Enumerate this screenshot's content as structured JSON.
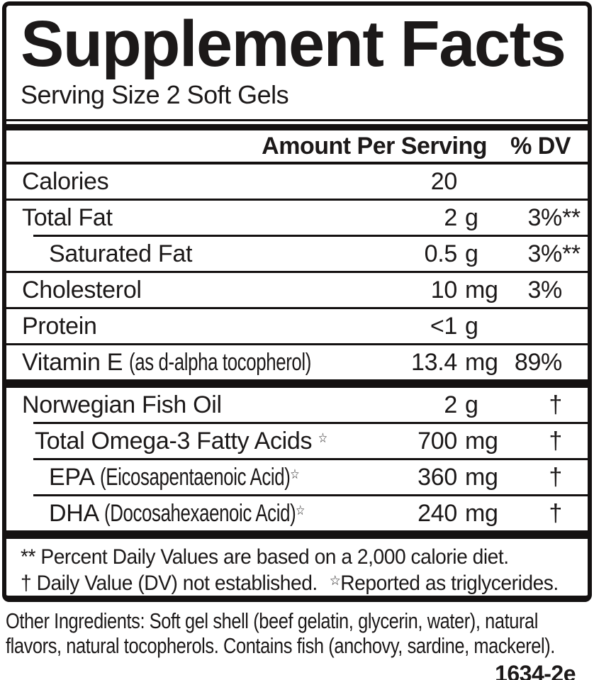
{
  "title": "Supplement Facts",
  "serving_size": "Serving Size 2 Soft Gels",
  "header": {
    "amount_label": "Amount Per Serving",
    "dv_label": "% DV"
  },
  "rows": [
    {
      "id": "calories",
      "label": "Calories",
      "note": "",
      "sup": "",
      "indent": 0,
      "amount": "20",
      "unit": "",
      "dv": "",
      "dv_suffix": "",
      "sep_below": "full"
    },
    {
      "id": "total-fat",
      "label": "Total Fat",
      "note": "",
      "sup": "",
      "indent": 0,
      "amount": "2",
      "unit": "g",
      "dv": "3%",
      "dv_suffix": "**",
      "sep_below": "indent"
    },
    {
      "id": "saturated-fat",
      "label": "Saturated Fat",
      "note": "",
      "sup": "",
      "indent": 2,
      "amount": "0.5",
      "unit": "g",
      "dv": "3%",
      "dv_suffix": "**",
      "sep_below": "full"
    },
    {
      "id": "cholesterol",
      "label": "Cholesterol",
      "note": "",
      "sup": "",
      "indent": 0,
      "amount": "10",
      "unit": "mg",
      "dv": "3%",
      "dv_suffix": "",
      "sep_below": "full"
    },
    {
      "id": "protein",
      "label": "Protein",
      "note": "",
      "sup": "",
      "indent": 0,
      "amount": "<1",
      "unit": "g",
      "dv": "",
      "dv_suffix": "",
      "sep_below": "full"
    },
    {
      "id": "vitamin-e",
      "label": "Vitamin E",
      "note": "(as d-alpha tocopherol)",
      "sup": "",
      "indent": 0,
      "amount": "13.4",
      "unit": "mg",
      "dv": "89%",
      "dv_suffix": "",
      "sep_below": "bigbar"
    },
    {
      "id": "norwegian-fish-oil",
      "label": "Norwegian Fish Oil",
      "note": "",
      "sup": "",
      "indent": 0,
      "amount": "2",
      "unit": "g",
      "dv": "†",
      "dv_suffix": "",
      "sep_below": "indent"
    },
    {
      "id": "total-omega-3",
      "label": "Total Omega-3 Fatty Acids",
      "note": "",
      "sup": "☆",
      "indent": 1,
      "amount": "700",
      "unit": "mg",
      "dv": "†",
      "dv_suffix": "",
      "sep_below": "indent"
    },
    {
      "id": "epa",
      "label": "EPA",
      "note": "(Eicosapentaenoic Acid)",
      "sup": "☆",
      "indent": 2,
      "amount": "360",
      "unit": "mg",
      "dv": "†",
      "dv_suffix": "",
      "sep_below": "indent"
    },
    {
      "id": "dha",
      "label": "DHA",
      "note": "(Docosahexaenoic Acid)",
      "sup": "☆",
      "indent": 2,
      "amount": "240",
      "unit": "mg",
      "dv": "†",
      "dv_suffix": "",
      "sep_below": "bigbar"
    }
  ],
  "footnotes": {
    "line1": "** Percent Daily Values are based on a 2,000 calorie diet.",
    "line2_part1": "† Daily Value (DV) not established.",
    "line2_star": "☆",
    "line2_part2": "Reported as triglycerides."
  },
  "other_ingredients": {
    "line1": "Other Ingredients: Soft gel shell (beef gelatin, glycerin, water), natural",
    "line2": "flavors, natural tocopherols. Contains fish (anchovy, sardine, mackerel)."
  },
  "item_code": "1634-2e",
  "colors": {
    "text": "#1c1919",
    "border": "#141111",
    "background": "#ffffff"
  }
}
